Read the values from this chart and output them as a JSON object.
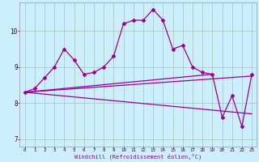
{
  "xlabel": "Windchill (Refroidissement éolien,°C)",
  "background_color": "#cceeff",
  "grid_color": "#aaccbb",
  "line_color": "#990099",
  "xlim": [
    -0.5,
    23.5
  ],
  "ylim": [
    6.8,
    10.8
  ],
  "yticks": [
    7,
    8,
    9,
    10
  ],
  "xticks": [
    0,
    1,
    2,
    3,
    4,
    5,
    6,
    7,
    8,
    9,
    10,
    11,
    12,
    13,
    14,
    15,
    16,
    17,
    18,
    19,
    20,
    21,
    22,
    23
  ],
  "main_x": [
    0,
    1,
    2,
    3,
    4,
    5,
    6,
    7,
    8,
    9,
    10,
    11,
    12,
    13,
    14,
    15,
    16,
    17,
    18,
    19,
    20,
    21,
    22,
    23
  ],
  "main_y": [
    8.3,
    8.4,
    8.7,
    9.0,
    9.5,
    9.2,
    8.8,
    8.85,
    9.0,
    9.3,
    10.2,
    10.3,
    10.3,
    10.6,
    10.3,
    9.5,
    9.6,
    9.0,
    8.85,
    8.8,
    7.6,
    8.2,
    7.35,
    8.8
  ],
  "ref_lines": [
    {
      "x": [
        0,
        19
      ],
      "y": [
        8.3,
        8.8
      ]
    },
    {
      "x": [
        0,
        23
      ],
      "y": [
        8.3,
        8.75
      ]
    },
    {
      "x": [
        0,
        23
      ],
      "y": [
        8.3,
        7.7
      ]
    }
  ],
  "markersize": 2.0,
  "linewidth": 0.9
}
